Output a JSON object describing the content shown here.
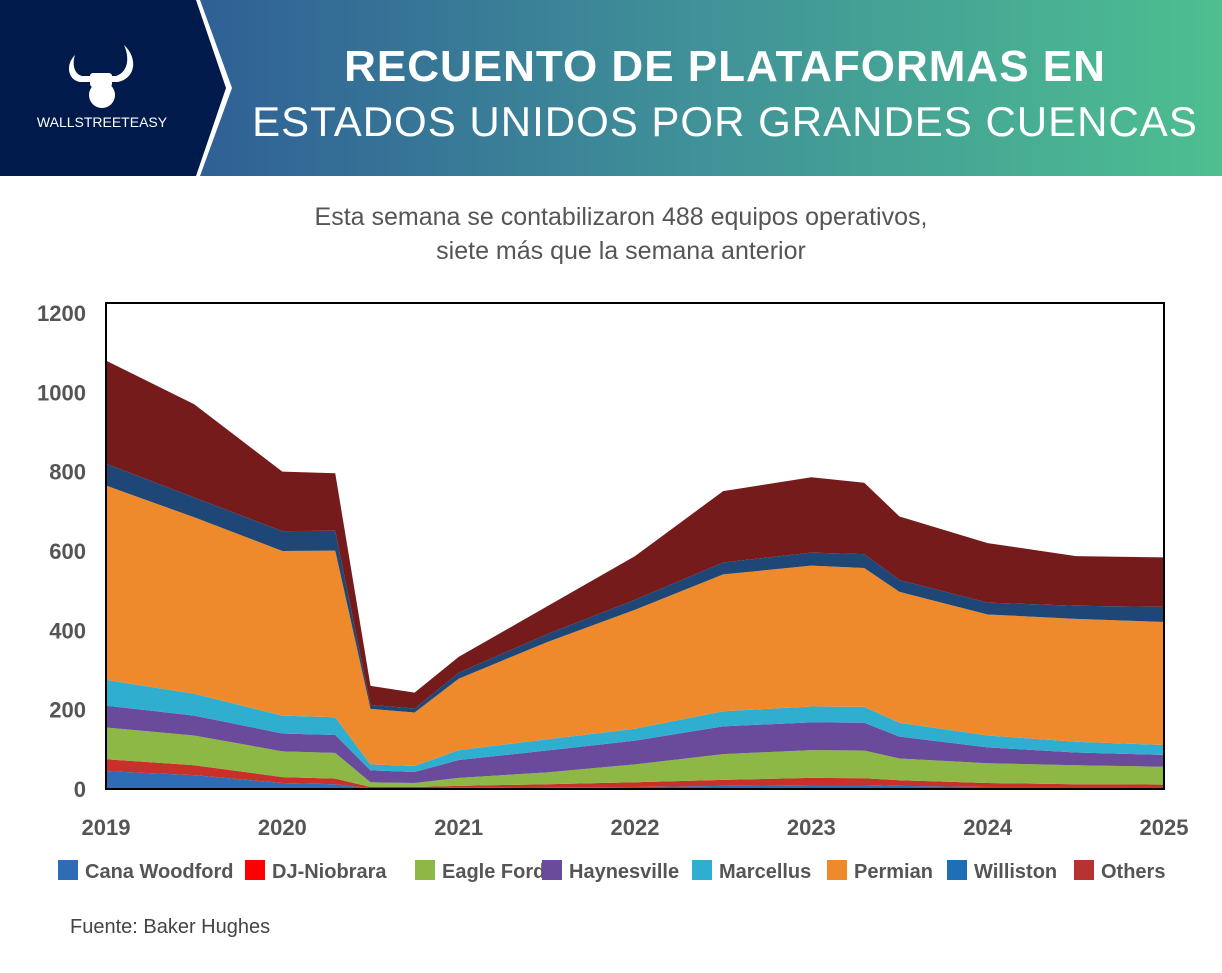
{
  "header": {
    "title_line1": "RECUENTO DE PLATAFORMAS EN",
    "title_line2": "ESTADOS UNIDOS POR GRANDES CUENCAS",
    "logo_text": "WALLSTREETEASY"
  },
  "subtitle": {
    "line1": "Esta semana se contabilizaron 488 equipos operativos,",
    "line2": "siete más que la semana anterior"
  },
  "source": "Fuente: Baker Hughes",
  "chart_data": {
    "type": "area",
    "stacked": true,
    "title": "",
    "xlabel": "",
    "ylabel": "",
    "xlim": [
      2019,
      2025
    ],
    "ylim": [
      0,
      1200
    ],
    "yticks": [
      0,
      200,
      400,
      600,
      800,
      1000,
      1200
    ],
    "xticks": [
      2019,
      2020,
      2021,
      2022,
      2023,
      2024,
      2025
    ],
    "legend": "bottom",
    "x": [
      2019,
      2019.5,
      2020,
      2020.3,
      2020.5,
      2020.75,
      2021,
      2021.5,
      2022,
      2022.5,
      2023,
      2023.3,
      2023.5,
      2024,
      2024.5,
      2025
    ],
    "series": [
      {
        "name": "Cana Woodford",
        "color": "#2e6db5",
        "values": [
          45,
          35,
          15,
          12,
          2,
          2,
          3,
          4,
          5,
          8,
          10,
          10,
          8,
          5,
          5,
          5
        ]
      },
      {
        "name": "DJ-Niobrara",
        "color": "#c8302a",
        "legend_color": "#ff0000",
        "values": [
          30,
          25,
          15,
          14,
          3,
          3,
          5,
          8,
          12,
          15,
          18,
          17,
          14,
          10,
          7,
          6
        ]
      },
      {
        "name": "Eagle Ford",
        "color": "#8db845",
        "values": [
          80,
          75,
          65,
          65,
          12,
          10,
          20,
          30,
          45,
          65,
          70,
          70,
          55,
          50,
          48,
          45
        ]
      },
      {
        "name": "Haynesville",
        "color": "#6a4a9a",
        "values": [
          55,
          50,
          45,
          45,
          30,
          28,
          45,
          55,
          60,
          70,
          70,
          70,
          55,
          40,
          32,
          30
        ]
      },
      {
        "name": "Marcellus",
        "color": "#30aed0",
        "values": [
          65,
          55,
          45,
          45,
          15,
          15,
          25,
          28,
          30,
          38,
          40,
          40,
          35,
          30,
          27,
          25
        ]
      },
      {
        "name": "Permian",
        "color": "#ef8a2c",
        "values": [
          490,
          445,
          415,
          420,
          140,
          135,
          180,
          245,
          300,
          345,
          355,
          350,
          330,
          305,
          310,
          310
        ]
      },
      {
        "name": "Williston",
        "color": "#1e4777",
        "legend_color": "#1f6fb5",
        "values": [
          55,
          50,
          50,
          50,
          10,
          10,
          15,
          20,
          25,
          30,
          33,
          35,
          30,
          30,
          33,
          38
        ]
      },
      {
        "name": "Others",
        "color": "#751b1b",
        "legend_color": "#b83232",
        "values": [
          260,
          235,
          150,
          145,
          48,
          40,
          40,
          70,
          110,
          180,
          190,
          180,
          160,
          150,
          125,
          125
        ]
      }
    ]
  }
}
